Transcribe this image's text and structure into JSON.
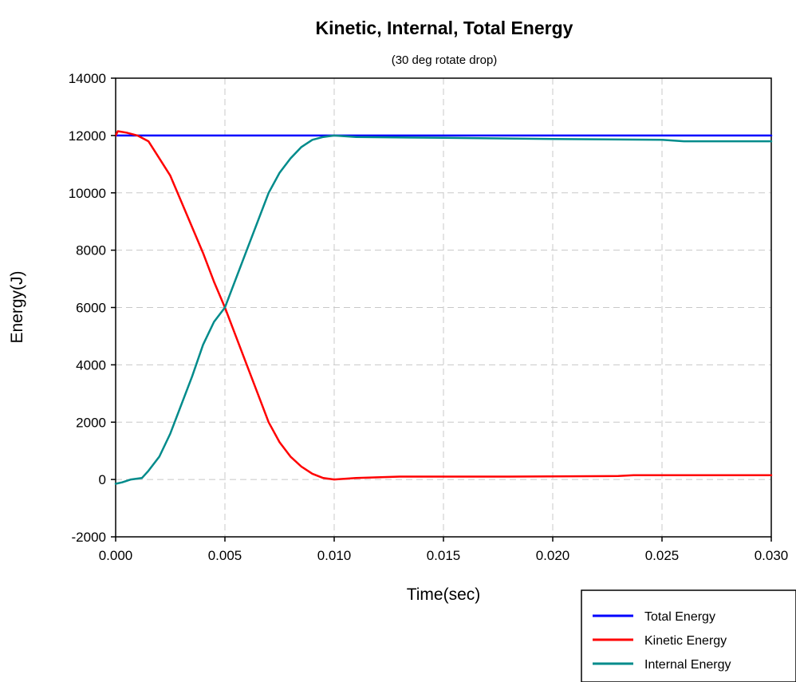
{
  "chart_data": {
    "type": "line",
    "title": "Kinetic, Internal, Total Energy",
    "subtitle": "(30 deg rotate drop)",
    "xlabel": "Time(sec)",
    "ylabel": "Energy(J)",
    "xlim": [
      0,
      0.03
    ],
    "ylim": [
      -2000,
      14000
    ],
    "x_ticks": [
      "0.000",
      "0.005",
      "0.010",
      "0.015",
      "0.020",
      "0.025",
      "0.030"
    ],
    "y_ticks": [
      "-2000",
      "0",
      "2000",
      "4000",
      "6000",
      "8000",
      "10000",
      "12000",
      "14000"
    ],
    "grid": true,
    "legend_position": "bottom-right, outside plot",
    "series": [
      {
        "name": "Total Energy",
        "color": "#0000ff",
        "points": [
          [
            0,
            12000
          ],
          [
            0.03,
            12000
          ]
        ]
      },
      {
        "name": "Kinetic Energy",
        "color": "#ff0000",
        "points": [
          [
            0,
            12000
          ],
          [
            0.0001,
            12150
          ],
          [
            0.0005,
            12100
          ],
          [
            0.001,
            12000
          ],
          [
            0.0015,
            11800
          ],
          [
            0.002,
            11200
          ],
          [
            0.0025,
            10600
          ],
          [
            0.003,
            9700
          ],
          [
            0.0035,
            8800
          ],
          [
            0.004,
            7900
          ],
          [
            0.0045,
            6900
          ],
          [
            0.005,
            6000
          ],
          [
            0.0055,
            5000
          ],
          [
            0.006,
            4000
          ],
          [
            0.0065,
            3000
          ],
          [
            0.007,
            2000
          ],
          [
            0.0075,
            1300
          ],
          [
            0.008,
            800
          ],
          [
            0.0085,
            450
          ],
          [
            0.009,
            200
          ],
          [
            0.0095,
            50
          ],
          [
            0.01,
            0
          ],
          [
            0.011,
            50
          ],
          [
            0.013,
            100
          ],
          [
            0.018,
            100
          ],
          [
            0.023,
            120
          ],
          [
            0.0237,
            150
          ],
          [
            0.03,
            150
          ]
        ]
      },
      {
        "name": "Internal Energy",
        "color": "#008b8b",
        "points": [
          [
            0,
            -150
          ],
          [
            0.0003,
            -100
          ],
          [
            0.0007,
            0
          ],
          [
            0.0012,
            50
          ],
          [
            0.0015,
            300
          ],
          [
            0.002,
            800
          ],
          [
            0.0025,
            1600
          ],
          [
            0.003,
            2600
          ],
          [
            0.0035,
            3600
          ],
          [
            0.004,
            4700
          ],
          [
            0.0045,
            5500
          ],
          [
            0.005,
            6000
          ],
          [
            0.0055,
            7000
          ],
          [
            0.006,
            8000
          ],
          [
            0.0065,
            9000
          ],
          [
            0.007,
            10000
          ],
          [
            0.0075,
            10700
          ],
          [
            0.008,
            11200
          ],
          [
            0.0085,
            11600
          ],
          [
            0.009,
            11850
          ],
          [
            0.0095,
            11950
          ],
          [
            0.01,
            12000
          ],
          [
            0.011,
            11950
          ],
          [
            0.015,
            11920
          ],
          [
            0.02,
            11880
          ],
          [
            0.025,
            11850
          ],
          [
            0.026,
            11800
          ],
          [
            0.03,
            11800
          ]
        ]
      }
    ]
  }
}
